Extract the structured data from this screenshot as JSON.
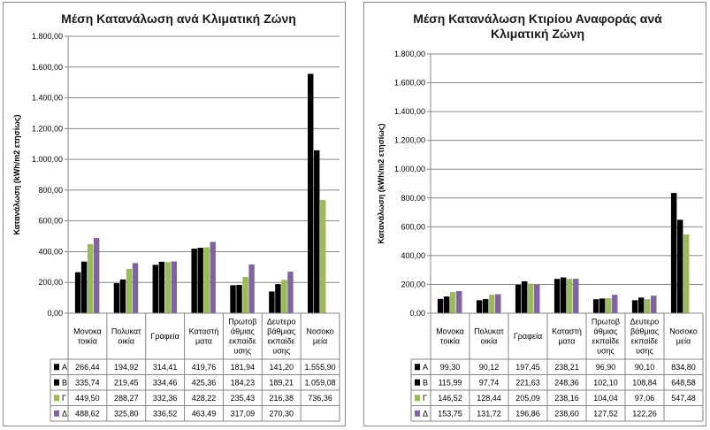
{
  "colors": {
    "A": "#4f81bd",
    "B": "#c0504d",
    "Γ": "#9bbb59",
    "Δ": "#8064a2",
    "grid": "#868686"
  },
  "chart_data": [
    {
      "type": "bar",
      "title": [
        "Μέση Κατανάλωση ανά Κλιματική Ζώνη"
      ],
      "ylabel": "Κατανάλωση (kWh/m2 ετησίως)",
      "ylim": [
        0,
        1800
      ],
      "yticks": [
        "0,00",
        "200,00",
        "400,00",
        "600,00",
        "800,00",
        "1.000,00",
        "1.200,00",
        "1.400,00",
        "1.600,00",
        "1.800,00"
      ],
      "categories": [
        [
          "Μονοκα",
          "τοικία"
        ],
        [
          "Πολυκατ",
          "οικία"
        ],
        [
          "Γραφεία"
        ],
        [
          "Καταστή",
          "ματα"
        ],
        [
          "Πρωτοβ",
          "άθμιας",
          "εκπαίδε",
          "υσης"
        ],
        [
          "Δευτερο",
          "βάθμιας",
          "εκπαίδε",
          "υσης"
        ],
        [
          "Νοσοκο",
          "μεία"
        ]
      ],
      "series": [
        {
          "name": "Α",
          "values": [
            266.44,
            194.92,
            314.41,
            419.76,
            181.94,
            141.2,
            1555.9
          ],
          "labels": [
            "266,44",
            "194,92",
            "314,41",
            "419,76",
            "181,94",
            "141,20",
            "1.555,90"
          ]
        },
        {
          "name": "Β",
          "values": [
            335.74,
            219.45,
            334.46,
            425.36,
            184.23,
            189.21,
            1059.08
          ],
          "labels": [
            "335,74",
            "219,45",
            "334,46",
            "425,36",
            "184,23",
            "189,21",
            "1.059,08"
          ]
        },
        {
          "name": "Γ",
          "values": [
            449.5,
            288.27,
            332.36,
            428.22,
            235.43,
            216.38,
            736.36
          ],
          "labels": [
            "449,50",
            "288,27",
            "332,36",
            "428,22",
            "235,43",
            "216,38",
            "736,36"
          ]
        },
        {
          "name": "Δ",
          "values": [
            488.62,
            325.8,
            336.52,
            463.49,
            317.09,
            270.3,
            null
          ],
          "labels": [
            "488,62",
            "325,80",
            "336,52",
            "463,49",
            "317,09",
            "270,30",
            ""
          ]
        }
      ],
      "grid": true,
      "legend": "data table"
    },
    {
      "type": "bar",
      "title": [
        "Μέση Κατανάλωση Κτιρίου Αναφοράς ανά",
        "Κλιματική Ζώνη"
      ],
      "ylabel": "Κατανάλωση (kWh/m2 ετησίως)",
      "ylim": [
        0,
        1800
      ],
      "yticks": [
        "0,00",
        "200,00",
        "400,00",
        "600,00",
        "800,00",
        "1.000,00",
        "1.200,00",
        "1.400,00",
        "1.600,00",
        "1.800,00"
      ],
      "categories": [
        [
          "Μονοκα",
          "τοικία"
        ],
        [
          "Πολυκατ",
          "οικία"
        ],
        [
          "Γραφεία"
        ],
        [
          "Καταστή",
          "ματα"
        ],
        [
          "Πρωτοβ",
          "άθμιας",
          "εκπαίδε",
          "υσης"
        ],
        [
          "Δευτερο",
          "βάθμιας",
          "εκπαίδε",
          "υσης"
        ],
        [
          "Νοσοκο",
          "μεία"
        ]
      ],
      "series": [
        {
          "name": "Α",
          "values": [
            99.3,
            90.12,
            197.45,
            238.21,
            96.9,
            90.1,
            834.8
          ],
          "labels": [
            "99,30",
            "90,12",
            "197,45",
            "238,21",
            "96,90",
            "90,10",
            "834,80"
          ]
        },
        {
          "name": "Β",
          "values": [
            115.99,
            97.74,
            221.63,
            248.36,
            102.1,
            108.84,
            648.58
          ],
          "labels": [
            "115,99",
            "97,74",
            "221,63",
            "248,36",
            "102,10",
            "108,84",
            "648,58"
          ]
        },
        {
          "name": "Γ",
          "values": [
            146.52,
            128.44,
            205.09,
            238.16,
            104.04,
            97.06,
            547.48
          ],
          "labels": [
            "146,52",
            "128,44",
            "205,09",
            "238,16",
            "104,04",
            "97,06",
            "547,48"
          ]
        },
        {
          "name": "Δ",
          "values": [
            153.75,
            131.72,
            196.86,
            238.6,
            127.52,
            122.26,
            null
          ],
          "labels": [
            "153,75",
            "131,72",
            "196,86",
            "238,60",
            "127,52",
            "122,26",
            ""
          ]
        }
      ],
      "grid": true,
      "legend": "data table"
    }
  ]
}
